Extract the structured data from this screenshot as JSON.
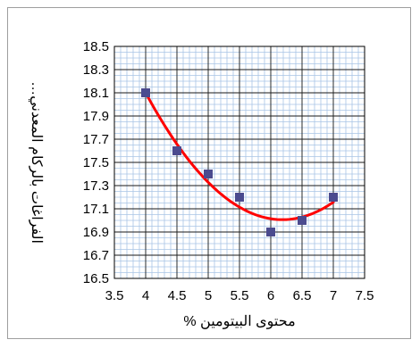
{
  "chart_data": {
    "type": "scatter",
    "title": "",
    "xlabel": "محتوى البيتومين %",
    "ylabel": "الفراغات بالركام المعدني…",
    "xlim": [
      3.5,
      7.5
    ],
    "ylim": [
      16.5,
      18.5
    ],
    "x_ticks": [
      "3.5",
      "4",
      "4.5",
      "5",
      "5.5",
      "6",
      "6.5",
      "7",
      "7.5"
    ],
    "y_ticks": [
      "18.5",
      "18.3",
      "18.1",
      "17.9",
      "17.7",
      "17.5",
      "17.3",
      "17.1",
      "16.9",
      "16.7",
      "16.5"
    ],
    "grid": true,
    "series": [
      {
        "points": [
          {
            "x": 4.0,
            "y": 18.1
          },
          {
            "x": 4.5,
            "y": 17.6
          },
          {
            "x": 5.0,
            "y": 17.4
          },
          {
            "x": 5.5,
            "y": 17.2
          },
          {
            "x": 6.0,
            "y": 16.9
          },
          {
            "x": 6.5,
            "y": 17.0
          },
          {
            "x": 7.0,
            "y": 17.2
          }
        ],
        "marker_color": "#4b4b8f"
      }
    ],
    "trendline": {
      "type": "polynomial-2",
      "color": "#ff0000",
      "x_range": [
        4.0,
        7.0
      ]
    }
  }
}
